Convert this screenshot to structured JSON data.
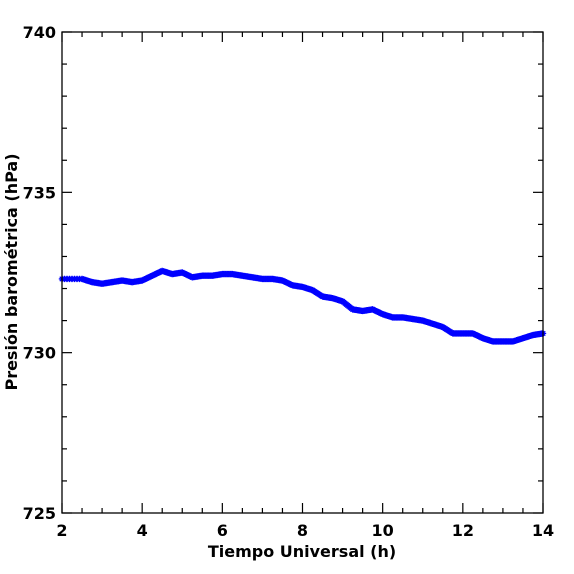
{
  "chart_data": {
    "type": "scatter",
    "xlabel": "Tiempo Universal (h)",
    "ylabel": "Presión barométrica (hPa)",
    "xlim": [
      2,
      14
    ],
    "ylim": [
      725,
      740
    ],
    "x_ticks": [
      2,
      4,
      6,
      8,
      10,
      12,
      14
    ],
    "y_ticks": [
      725,
      730,
      735,
      740
    ],
    "x_tick_labels": [
      "2",
      "4",
      "6",
      "8",
      "10",
      "12",
      "14"
    ],
    "y_tick_labels": [
      "725",
      "730",
      "735",
      "740"
    ],
    "grid": false,
    "series_color": "#0000ff",
    "points": [
      [
        2.0,
        732.3
      ],
      [
        2.5,
        732.3
      ],
      [
        2.75,
        732.2
      ],
      [
        3.0,
        732.15
      ],
      [
        3.25,
        732.2
      ],
      [
        3.5,
        732.25
      ],
      [
        3.75,
        732.2
      ],
      [
        4.0,
        732.25
      ],
      [
        4.25,
        732.4
      ],
      [
        4.5,
        732.55
      ],
      [
        4.75,
        732.45
      ],
      [
        5.0,
        732.5
      ],
      [
        5.25,
        732.35
      ],
      [
        5.5,
        732.4
      ],
      [
        5.75,
        732.4
      ],
      [
        6.0,
        732.45
      ],
      [
        6.25,
        732.45
      ],
      [
        6.5,
        732.4
      ],
      [
        6.75,
        732.35
      ],
      [
        7.0,
        732.3
      ],
      [
        7.25,
        732.3
      ],
      [
        7.5,
        732.25
      ],
      [
        7.75,
        732.1
      ],
      [
        8.0,
        732.05
      ],
      [
        8.25,
        731.95
      ],
      [
        8.5,
        731.75
      ],
      [
        8.75,
        731.7
      ],
      [
        9.0,
        731.6
      ],
      [
        9.25,
        731.35
      ],
      [
        9.5,
        731.3
      ],
      [
        9.75,
        731.35
      ],
      [
        10.0,
        731.2
      ],
      [
        10.25,
        731.1
      ],
      [
        10.5,
        731.1
      ],
      [
        10.75,
        731.05
      ],
      [
        11.0,
        731.0
      ],
      [
        11.25,
        730.9
      ],
      [
        11.5,
        730.8
      ],
      [
        11.75,
        730.6
      ],
      [
        12.0,
        730.6
      ],
      [
        12.25,
        730.6
      ],
      [
        12.5,
        730.45
      ],
      [
        12.75,
        730.35
      ],
      [
        13.0,
        730.35
      ],
      [
        13.25,
        730.35
      ],
      [
        13.5,
        730.45
      ],
      [
        13.75,
        730.55
      ],
      [
        14.0,
        730.6
      ]
    ]
  }
}
